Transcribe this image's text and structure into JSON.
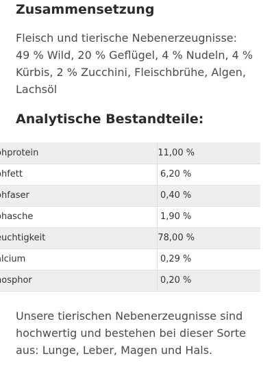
{
  "composition": {
    "title": "Zusammensetzung",
    "lines": [
      "Fleisch und tierische Nebenerzeugnisse:",
      "49 % Wild, 20 % Geflügel, 4 % Nudeln, 4 %",
      "Kürbis, 2 % Zucchini, Fleischbrühe, Algen,",
      "Lachsöl"
    ]
  },
  "analysis": {
    "title": "Analytische Bestandteile:",
    "rows": [
      {
        "name": "ohprotein",
        "value": "11,00 %"
      },
      {
        "name": "ohfett",
        "value": "6,20 %"
      },
      {
        "name": "ohfaser",
        "value": "0,40 %"
      },
      {
        "name": "ohasche",
        "value": "1,90 %"
      },
      {
        "name": "euchtigkeit",
        "value": "78,00 %"
      },
      {
        "name": "alcium",
        "value": "0,29 %"
      },
      {
        "name": "hosphor",
        "value": "0,20 %"
      }
    ]
  },
  "note": {
    "lines": [
      "Unsere tierischen Nebenerzeugnisse sind",
      "hochwertig und bestehen bei dieser Sorte",
      "aus: Lunge, Leber, Magen und Hals."
    ]
  }
}
